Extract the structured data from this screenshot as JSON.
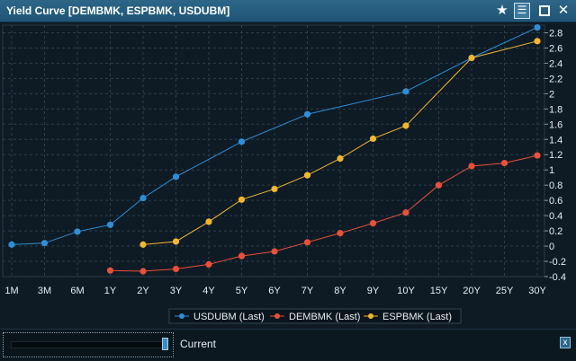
{
  "window": {
    "title": "Yield Curve [DEMBMK, ESPBMK, USDUBM]",
    "star_icon": "star-icon",
    "menu_icon": "hamburger-menu-icon",
    "maximize_icon": "maximize-icon",
    "close_icon": "close-icon"
  },
  "chart_data": {
    "type": "line",
    "categories": [
      "1M",
      "3M",
      "6M",
      "1Y",
      "2Y",
      "3Y",
      "4Y",
      "5Y",
      "6Y",
      "7Y",
      "8Y",
      "9Y",
      "10Y",
      "15Y",
      "20Y",
      "25Y",
      "30Y"
    ],
    "y_axis_ticks": [
      "2.8",
      "2.6",
      "2.4",
      "2.2",
      "2",
      "1.8",
      "1.6",
      "1.4",
      "1.2",
      "1",
      "0.8",
      "0.6",
      "0.4",
      "0.2",
      "0",
      "-0.2",
      "-0.4"
    ],
    "ylim": [
      -0.4,
      2.9
    ],
    "y_axis_side": "right",
    "grid": true,
    "legend_position": "bottom",
    "series": [
      {
        "name": "USDUBM (Last)",
        "color": "#2e8fd6",
        "values": [
          0.02,
          0.04,
          0.19,
          0.28,
          0.63,
          0.91,
          null,
          1.37,
          null,
          1.73,
          null,
          null,
          2.03,
          null,
          2.47,
          null,
          2.87
        ]
      },
      {
        "name": "DEMBMK (Last)",
        "color": "#e8503a",
        "values": [
          null,
          null,
          null,
          -0.32,
          -0.33,
          -0.3,
          -0.24,
          -0.13,
          -0.07,
          0.05,
          0.17,
          0.3,
          0.44,
          0.8,
          1.05,
          1.09,
          1.19
        ]
      },
      {
        "name": "ESPBMK (Last)",
        "color": "#f2b630",
        "values": [
          null,
          null,
          null,
          null,
          0.02,
          0.06,
          0.32,
          0.61,
          0.75,
          0.93,
          1.15,
          1.41,
          1.58,
          null,
          2.47,
          null,
          2.69
        ]
      }
    ]
  },
  "footer": {
    "slider_label": "Current",
    "close_label": "x"
  }
}
